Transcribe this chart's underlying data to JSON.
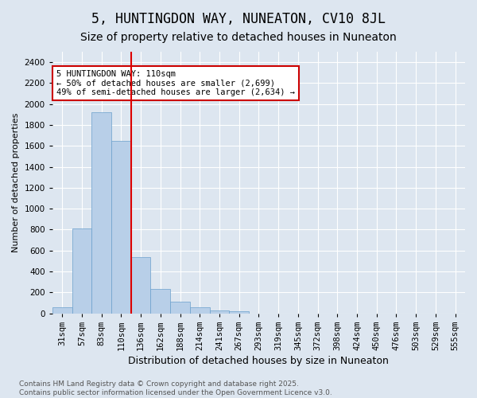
{
  "title": "5, HUNTINGDON WAY, NUNEATON, CV10 8JL",
  "subtitle": "Size of property relative to detached houses in Nuneaton",
  "xlabel": "Distribution of detached houses by size in Nuneaton",
  "ylabel": "Number of detached properties",
  "bins": [
    "31sqm",
    "57sqm",
    "83sqm",
    "110sqm",
    "136sqm",
    "162sqm",
    "188sqm",
    "214sqm",
    "241sqm",
    "267sqm",
    "293sqm",
    "319sqm",
    "345sqm",
    "372sqm",
    "398sqm",
    "424sqm",
    "450sqm",
    "476sqm",
    "503sqm",
    "529sqm",
    "555sqm"
  ],
  "values": [
    57,
    810,
    1920,
    1650,
    540,
    235,
    110,
    55,
    30,
    20,
    0,
    0,
    0,
    0,
    0,
    0,
    0,
    0,
    0,
    0,
    0
  ],
  "bar_color": "#b8cfe8",
  "bar_edge_color": "#6aa0cc",
  "red_line_index": 3,
  "annotation_text": "5 HUNTINGDON WAY: 110sqm\n← 50% of detached houses are smaller (2,699)\n49% of semi-detached houses are larger (2,634) →",
  "annotation_box_facecolor": "#ffffff",
  "annotation_box_edgecolor": "#cc0000",
  "ylim": [
    0,
    2500
  ],
  "yticks": [
    0,
    200,
    400,
    600,
    800,
    1000,
    1200,
    1400,
    1600,
    1800,
    2000,
    2200,
    2400
  ],
  "background_color": "#dde6f0",
  "grid_color": "#ffffff",
  "footer_text": "Contains HM Land Registry data © Crown copyright and database right 2025.\nContains public sector information licensed under the Open Government Licence v3.0.",
  "title_fontsize": 12,
  "subtitle_fontsize": 10,
  "xlabel_fontsize": 9,
  "ylabel_fontsize": 8,
  "tick_fontsize": 7.5,
  "footer_fontsize": 6.5
}
